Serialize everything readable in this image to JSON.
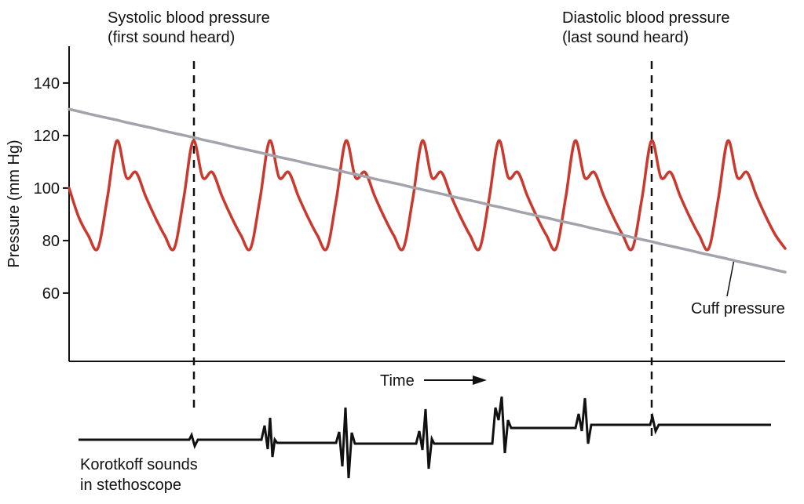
{
  "chart_data": {
    "type": "line",
    "y_label": "Pressure (mm Hg)",
    "x_label": "Time",
    "ylim": [
      34,
      154
    ],
    "yticks": [
      60,
      80,
      100,
      120,
      140
    ],
    "categories": [
      null,
      null,
      null,
      null,
      null,
      null,
      null,
      null,
      null,
      null,
      null,
      null,
      null,
      null,
      null,
      null,
      null,
      null,
      null,
      null,
      null,
      null,
      null,
      null,
      null,
      null,
      null,
      null,
      null,
      null,
      null,
      null,
      null,
      null,
      null,
      null,
      null,
      null,
      null,
      null,
      null,
      null,
      null,
      null,
      null,
      null,
      null,
      null,
      null,
      null,
      null,
      null,
      null,
      null,
      null,
      null,
      null,
      null,
      null,
      null,
      null,
      null,
      null,
      null,
      null,
      null,
      null,
      null,
      null,
      null,
      null,
      null,
      null,
      null,
      null,
      null
    ],
    "series": [
      {
        "color": "#c9392e",
        "values": [
          100,
          89,
          82,
          77,
          96,
          118,
          104,
          106,
          97,
          89,
          82,
          77,
          96,
          118,
          104,
          106,
          97,
          89,
          82,
          77,
          96,
          118,
          104,
          106,
          97,
          89,
          82,
          77,
          96,
          118,
          104,
          106,
          97,
          89,
          82,
          77,
          96,
          118,
          104,
          106,
          97,
          89,
          82,
          77,
          96,
          118,
          104,
          106,
          97,
          89,
          82,
          77,
          96,
          118,
          104,
          106,
          97,
          89,
          82,
          77,
          96,
          118,
          104,
          106,
          97,
          89,
          82,
          77,
          96,
          118,
          104,
          106,
          97,
          89,
          82,
          77
        ]
      },
      {
        "name": "Cuff pressure",
        "color": "#a3a3ab",
        "values": [
          130.0,
          129.2,
          128.3,
          127.5,
          126.7,
          125.9,
          125.0,
          124.2,
          123.4,
          122.6,
          121.7,
          120.9,
          120.1,
          119.3,
          118.4,
          117.6,
          116.8,
          115.9,
          115.1,
          114.3,
          113.5,
          112.6,
          111.8,
          111.0,
          110.2,
          109.3,
          108.5,
          107.7,
          106.9,
          106.0,
          105.2,
          104.4,
          103.5,
          102.7,
          101.9,
          101.1,
          100.2,
          99.4,
          98.6,
          97.8,
          96.9,
          96.1,
          95.3,
          94.5,
          93.6,
          92.8,
          92.0,
          91.1,
          90.3,
          89.5,
          88.7,
          87.8,
          87.0,
          86.2,
          85.4,
          84.5,
          83.7,
          82.9,
          82.1,
          81.2,
          80.4,
          79.6,
          78.7,
          77.9,
          77.1,
          76.3,
          75.4,
          74.6,
          73.8,
          73.0,
          72.1,
          71.3,
          70.5,
          69.7,
          68.8,
          68.0
        ]
      }
    ],
    "annotations": [
      {
        "lines": [
          "Systolic blood pressure",
          "(first sound heard)"
        ]
      },
      {
        "lines": [
          "Diastolic blood pressure",
          "(last sound heard)"
        ]
      },
      {
        "lines": [
          "Korotkoff sounds",
          "in stethoscope"
        ]
      }
    ]
  }
}
